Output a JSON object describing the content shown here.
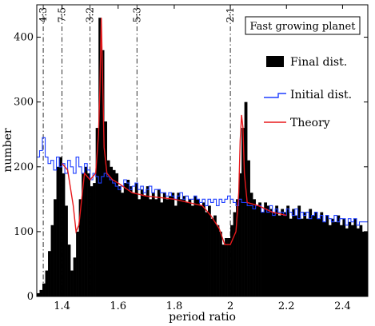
{
  "chart_data": {
    "type": "bar",
    "title": "Fast growing planet",
    "xlabel": "period ratio",
    "ylabel": "number",
    "xlim": [
      1.31,
      2.49
    ],
    "ylim": [
      0,
      450
    ],
    "xticks": [
      "1.4",
      "1.6",
      "1.8",
      "2",
      "2.2",
      "2.4"
    ],
    "yticks": [
      "0",
      "100",
      "200",
      "300",
      "400"
    ],
    "legend": {
      "placement": "top-right",
      "items": [
        {
          "label": "Final dist.",
          "style": "filled-bar",
          "color": "#000000"
        },
        {
          "label": "Initial dist.",
          "style": "step-line",
          "color": "#1f3fff"
        },
        {
          "label": "Theory",
          "style": "line",
          "color": "#e8191c"
        }
      ]
    },
    "resonances": [
      {
        "label": "4:3",
        "x": 1.333
      },
      {
        "label": "7:5",
        "x": 1.4
      },
      {
        "label": "3:2",
        "x": 1.5
      },
      {
        "label": "5:3",
        "x": 1.667
      },
      {
        "label": "2:1",
        "x": 2.0
      }
    ],
    "series": [
      {
        "name": "Final dist.",
        "kind": "histogram",
        "x": [
          1.31,
          1.32,
          1.33,
          1.34,
          1.35,
          1.36,
          1.37,
          1.38,
          1.39,
          1.4,
          1.41,
          1.42,
          1.43,
          1.44,
          1.45,
          1.46,
          1.47,
          1.48,
          1.49,
          1.5,
          1.51,
          1.52,
          1.53,
          1.54,
          1.55,
          1.56,
          1.57,
          1.58,
          1.59,
          1.6,
          1.61,
          1.62,
          1.63,
          1.64,
          1.65,
          1.66,
          1.67,
          1.68,
          1.69,
          1.7,
          1.71,
          1.72,
          1.73,
          1.74,
          1.75,
          1.76,
          1.77,
          1.78,
          1.79,
          1.8,
          1.81,
          1.82,
          1.83,
          1.84,
          1.85,
          1.86,
          1.87,
          1.88,
          1.89,
          1.9,
          1.91,
          1.92,
          1.93,
          1.94,
          1.95,
          1.96,
          1.97,
          1.98,
          1.99,
          2,
          2.01,
          2.02,
          2.03,
          2.04,
          2.05,
          2.06,
          2.07,
          2.08,
          2.09,
          2.1,
          2.11,
          2.12,
          2.13,
          2.14,
          2.15,
          2.16,
          2.17,
          2.18,
          2.19,
          2.2,
          2.21,
          2.22,
          2.23,
          2.24,
          2.25,
          2.26,
          2.27,
          2.28,
          2.29,
          2.3,
          2.31,
          2.32,
          2.33,
          2.34,
          2.35,
          2.36,
          2.37,
          2.38,
          2.39,
          2.4,
          2.41,
          2.42,
          2.43,
          2.44,
          2.45,
          2.46,
          2.47,
          2.48
        ],
        "values": [
          5,
          10,
          20,
          40,
          70,
          110,
          150,
          200,
          215,
          190,
          140,
          80,
          40,
          60,
          100,
          150,
          190,
          200,
          190,
          170,
          175,
          260,
          430,
          380,
          270,
          210,
          200,
          195,
          190,
          170,
          160,
          175,
          180,
          170,
          160,
          175,
          150,
          165,
          155,
          170,
          150,
          160,
          150,
          165,
          145,
          160,
          150,
          155,
          160,
          140,
          160,
          150,
          155,
          145,
          150,
          140,
          155,
          150,
          140,
          145,
          130,
          140,
          120,
          125,
          110,
          100,
          80,
          90,
          90,
          110,
          130,
          150,
          190,
          260,
          300,
          210,
          160,
          150,
          140,
          145,
          130,
          145,
          140,
          135,
          130,
          140,
          125,
          135,
          130,
          140,
          120,
          135,
          125,
          140,
          120,
          130,
          120,
          135,
          125,
          130,
          120,
          130,
          115,
          125,
          110,
          120,
          115,
          125,
          110,
          120,
          105,
          115,
          110,
          120,
          105,
          110,
          100,
          100
        ]
      },
      {
        "name": "Initial dist.",
        "kind": "step",
        "x": [
          1.31,
          1.32,
          1.33,
          1.34,
          1.35,
          1.36,
          1.37,
          1.38,
          1.39,
          1.4,
          1.41,
          1.42,
          1.43,
          1.44,
          1.45,
          1.46,
          1.47,
          1.48,
          1.49,
          1.5,
          1.51,
          1.52,
          1.53,
          1.54,
          1.55,
          1.56,
          1.57,
          1.58,
          1.59,
          1.6,
          1.61,
          1.62,
          1.63,
          1.64,
          1.65,
          1.66,
          1.67,
          1.68,
          1.69,
          1.7,
          1.71,
          1.72,
          1.73,
          1.74,
          1.75,
          1.76,
          1.77,
          1.78,
          1.79,
          1.8,
          1.81,
          1.82,
          1.83,
          1.84,
          1.85,
          1.86,
          1.87,
          1.88,
          1.89,
          1.9,
          1.91,
          1.92,
          1.93,
          1.94,
          1.95,
          1.96,
          1.97,
          1.98,
          1.99,
          2,
          2.01,
          2.02,
          2.03,
          2.04,
          2.05,
          2.06,
          2.07,
          2.08,
          2.09,
          2.1,
          2.11,
          2.12,
          2.13,
          2.14,
          2.15,
          2.16,
          2.17,
          2.18,
          2.19,
          2.2,
          2.21,
          2.22,
          2.23,
          2.24,
          2.25,
          2.26,
          2.27,
          2.28,
          2.29,
          2.3,
          2.31,
          2.32,
          2.33,
          2.34,
          2.35,
          2.36,
          2.37,
          2.38,
          2.39,
          2.4,
          2.41,
          2.42,
          2.43,
          2.44,
          2.45,
          2.46,
          2.47,
          2.48
        ],
        "values": [
          215,
          225,
          245,
          215,
          205,
          210,
          195,
          215,
          200,
          205,
          190,
          210,
          200,
          190,
          215,
          200,
          190,
          205,
          195,
          180,
          190,
          185,
          175,
          185,
          190,
          185,
          180,
          175,
          170,
          165,
          170,
          180,
          175,
          165,
          170,
          175,
          165,
          170,
          160,
          165,
          170,
          160,
          165,
          165,
          160,
          160,
          155,
          160,
          155,
          150,
          155,
          160,
          150,
          155,
          150,
          150,
          155,
          150,
          145,
          150,
          140,
          150,
          145,
          150,
          140,
          150,
          145,
          150,
          155,
          150,
          145,
          140,
          150,
          145,
          145,
          140,
          140,
          135,
          140,
          140,
          130,
          135,
          130,
          140,
          125,
          135,
          130,
          130,
          125,
          135,
          130,
          125,
          135,
          120,
          130,
          125,
          130,
          120,
          125,
          130,
          120,
          125,
          115,
          125,
          120,
          115,
          125,
          115,
          120,
          120,
          110,
          120,
          115,
          120,
          110,
          115,
          115,
          115
        ]
      },
      {
        "name": "Theory",
        "kind": "line",
        "x": [
          1.4,
          1.42,
          1.44,
          1.45,
          1.46,
          1.47,
          1.48,
          1.5,
          1.52,
          1.53,
          1.535,
          1.54,
          1.545,
          1.55,
          1.56,
          1.58,
          1.6,
          1.65,
          1.7,
          1.8,
          1.9,
          1.93,
          1.96,
          1.98,
          2.0,
          2.02,
          2.03,
          2.035,
          2.04,
          2.045,
          2.05,
          2.06,
          2.1,
          2.15,
          2.2
        ],
        "values": [
          205,
          195,
          140,
          100,
          110,
          150,
          190,
          180,
          190,
          250,
          320,
          430,
          330,
          230,
          190,
          180,
          175,
          160,
          155,
          150,
          140,
          125,
          105,
          80,
          80,
          100,
          160,
          240,
          280,
          260,
          190,
          145,
          140,
          130,
          125
        ]
      }
    ]
  }
}
